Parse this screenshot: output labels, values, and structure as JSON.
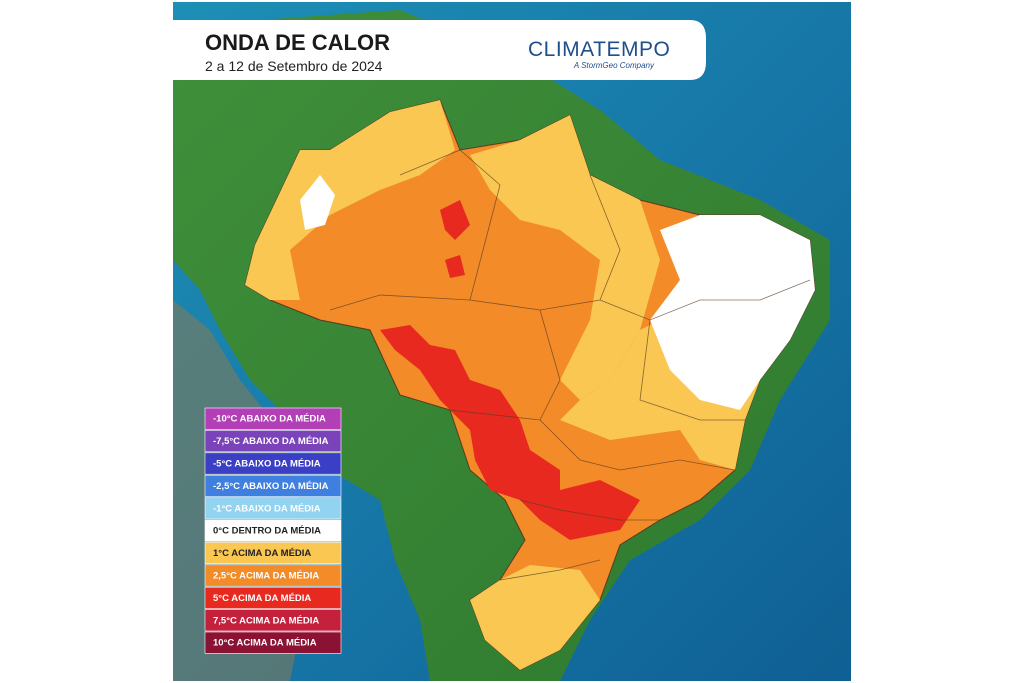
{
  "header": {
    "title": "ONDA DE CALOR",
    "subtitle": "2 a 12 de Setembro de 2024"
  },
  "logo": {
    "name": "CLIMATEMPO",
    "tagline": "A StormGeo Company"
  },
  "legend": [
    {
      "label": "-10°C ABAIXO DA MÉDIA",
      "color": "#b23fb5"
    },
    {
      "label": "-7,5°C ABAIXO DA MÉDIA",
      "color": "#7b43b9"
    },
    {
      "label": "-5°C ABAIXO DA MÉDIA",
      "color": "#3b3fc6"
    },
    {
      "label": "-2,5°C ABAIXO DA MÉDIA",
      "color": "#3f7fe0"
    },
    {
      "label": "-1°C ABAIXO DA MÉDIA",
      "color": "#92d3f2"
    },
    {
      "label": "0°C DENTRO DA MÉDIA",
      "color": "#ffffff"
    },
    {
      "label": "1°C ACIMA DA MÉDIA",
      "color": "#f9c752"
    },
    {
      "label": "2,5°C ACIMA DA MÉDIA",
      "color": "#f28b28"
    },
    {
      "label": "5°C ACIMA DA MÉDIA",
      "color": "#e8291f"
    },
    {
      "label": "7,5°C ACIMA DA MÉDIA",
      "color": "#c4213c"
    },
    {
      "label": "10°C ACIMA DA MÉDIA",
      "color": "#8b1233"
    }
  ]
}
